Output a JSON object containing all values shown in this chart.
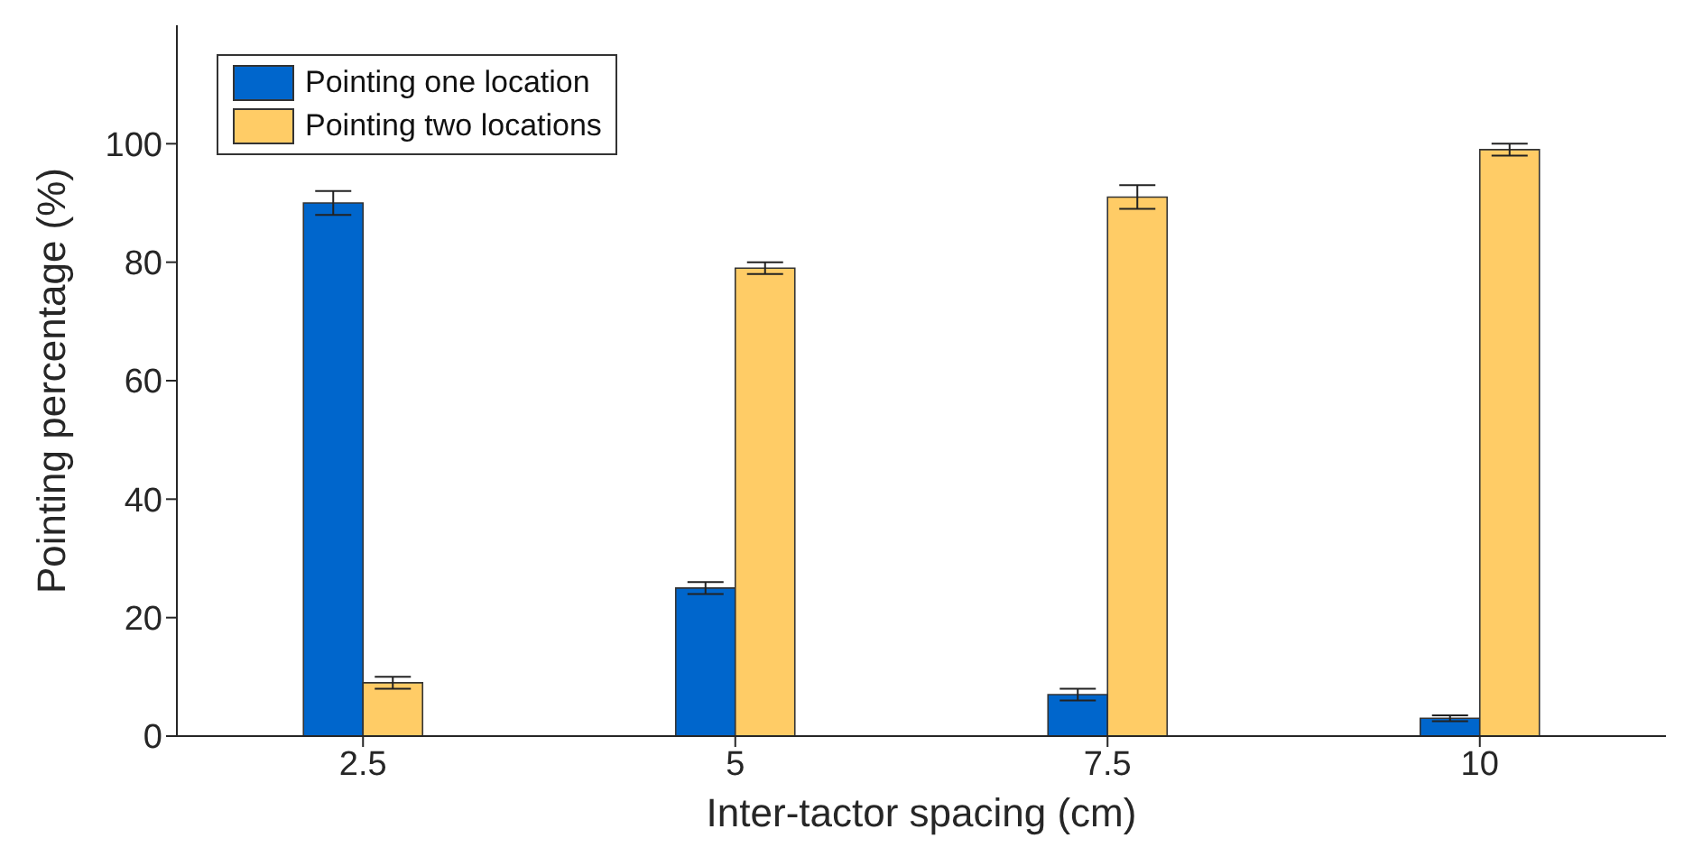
{
  "chart_data": {
    "type": "bar",
    "xlabel": "Inter-tactor spacing (cm)",
    "ylabel": "Pointing percentage (%)",
    "categories": [
      "2.5",
      "5",
      "7.5",
      "10"
    ],
    "series": [
      {
        "name": "Pointing one location",
        "color": "#0066cc",
        "values": [
          90,
          25,
          7,
          3
        ],
        "errors": [
          2,
          1,
          1,
          0.5
        ]
      },
      {
        "name": "Pointing two locations",
        "color": "#ffcc66",
        "values": [
          9,
          79,
          91,
          99
        ],
        "errors": [
          1,
          1,
          2,
          1
        ]
      }
    ],
    "ylim": [
      0,
      120
    ],
    "yticks": [
      0,
      20,
      40,
      60,
      80,
      100
    ],
    "grid": false,
    "legend": "top left"
  }
}
